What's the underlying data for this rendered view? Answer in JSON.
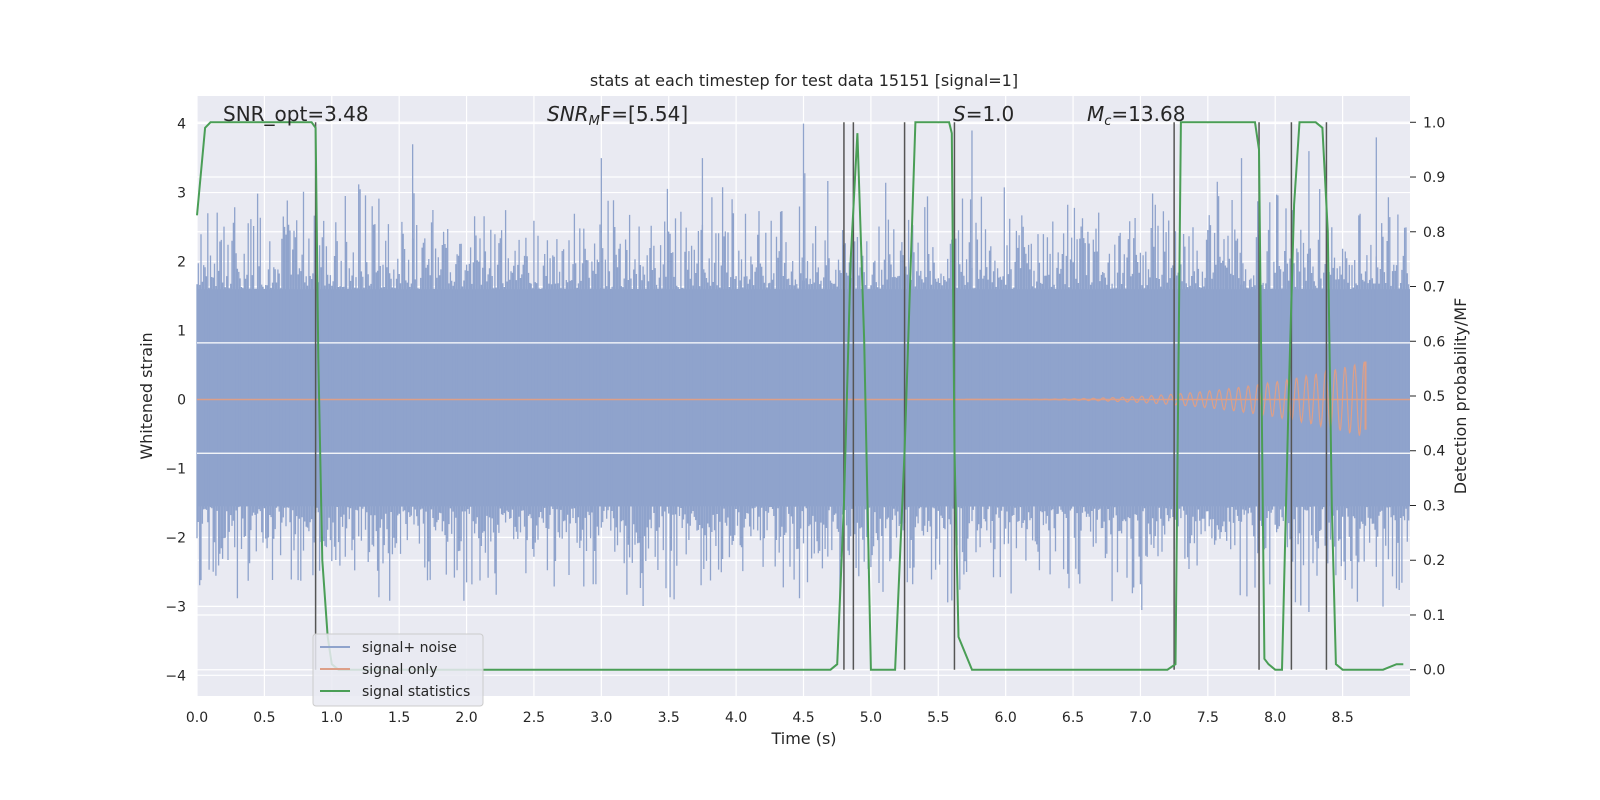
{
  "chart_data": {
    "type": "line",
    "title": "stats at each timestep for test data 15151 [signal=1]",
    "xlabel": "Time (s)",
    "ylabel_left": "Whitened strain",
    "ylabel_right": "Detection probability/MF",
    "xlim": [
      0.0,
      9.0
    ],
    "ylim_left": [
      -4.3,
      4.4
    ],
    "ylim_right": [
      -0.048,
      1.048
    ],
    "x_ticks": [
      "0.0",
      "0.5",
      "1.0",
      "1.5",
      "2.0",
      "2.5",
      "3.0",
      "3.5",
      "4.0",
      "4.5",
      "5.0",
      "5.5",
      "6.0",
      "6.5",
      "7.0",
      "7.5",
      "8.0",
      "8.5"
    ],
    "y_ticks_left": [
      "−4",
      "−3",
      "−2",
      "−1",
      "0",
      "1",
      "2",
      "3",
      "4"
    ],
    "y_ticks_right": [
      "0.0",
      "0.1",
      "0.2",
      "0.3",
      "0.4",
      "0.5",
      "0.6",
      "0.7",
      "0.8",
      "0.9",
      "1.0"
    ],
    "grid": true,
    "legend_position": "lower-left",
    "annotations": {
      "snr_opt": "SNR_opt=3.48",
      "snr_mf_name": "SNR",
      "snr_mf_sub": "M",
      "snr_mf_tail": "F=[5.54]",
      "s_name": "S",
      "s_value": "=1.0",
      "mc_name": "M",
      "mc_sub": "c",
      "mc_value": "=13.68"
    },
    "series": [
      {
        "name": "signal+ noise",
        "color": "#8fa3cc",
        "description_values": {
          "noise_band": [
            -1.55,
            1.6
          ],
          "typical_peak": 2.6,
          "max_peaks_x": [
            1.6,
            3.0,
            3.75,
            4.5,
            5.75,
            7.75,
            8.25,
            8.75
          ],
          "max_peaks_y": [
            3.7,
            3.5,
            3.5,
            4.0,
            3.9,
            3.5,
            3.6,
            3.8
          ]
        }
      },
      {
        "name": "signal only",
        "color": "#dd9f88",
        "chirp_start": 5.7,
        "chirp_end": 8.67,
        "peak_amplitude": 0.55
      },
      {
        "name": "signal statistics",
        "color": "#4a9e56",
        "x": [
          0.0,
          0.06,
          0.1,
          0.2,
          0.3,
          0.4,
          0.5,
          0.6,
          0.7,
          0.8,
          0.85,
          0.88,
          0.9,
          0.93,
          0.97,
          1.0,
          1.05,
          1.1,
          1.5,
          2.0,
          2.5,
          3.0,
          3.5,
          4.0,
          4.5,
          4.7,
          4.75,
          4.8,
          4.85,
          4.9,
          4.95,
          5.0,
          5.1,
          5.18,
          5.25,
          5.33,
          5.4,
          5.5,
          5.58,
          5.6,
          5.62,
          5.65,
          5.75,
          6.0,
          6.5,
          7.0,
          7.2,
          7.26,
          7.3,
          7.4,
          7.6,
          7.85,
          7.88,
          7.92,
          7.95,
          8.0,
          8.05,
          8.1,
          8.14,
          8.18,
          8.22,
          8.3,
          8.35,
          8.39,
          8.42,
          8.45,
          8.5,
          8.7,
          8.8,
          8.9,
          8.95
        ],
        "y": [
          0.83,
          0.99,
          1.0,
          1.0,
          1.0,
          1.0,
          1.0,
          1.0,
          1.0,
          1.0,
          1.0,
          0.99,
          0.57,
          0.2,
          0.06,
          0.01,
          0.0,
          0.0,
          0.0,
          0.0,
          0.0,
          0.0,
          0.0,
          0.0,
          0.0,
          0.0,
          0.01,
          0.3,
          0.75,
          0.98,
          0.6,
          0.0,
          0.0,
          0.0,
          0.4,
          1.0,
          1.0,
          1.0,
          1.0,
          0.98,
          0.4,
          0.06,
          0.0,
          0.0,
          0.0,
          0.0,
          0.0,
          0.01,
          1.0,
          1.0,
          1.0,
          1.0,
          0.95,
          0.02,
          0.01,
          0.0,
          0.0,
          0.5,
          0.85,
          1.0,
          1.0,
          1.0,
          0.99,
          0.8,
          0.3,
          0.01,
          0.0,
          0.0,
          0.0,
          0.01,
          0.01
        ]
      }
    ],
    "vertical_lines_x": [
      0.88,
      4.8,
      4.87,
      5.25,
      5.62,
      7.25,
      7.88,
      8.12,
      8.38
    ],
    "horizontal_bands_left": [
      0.82,
      -0.78
    ]
  }
}
